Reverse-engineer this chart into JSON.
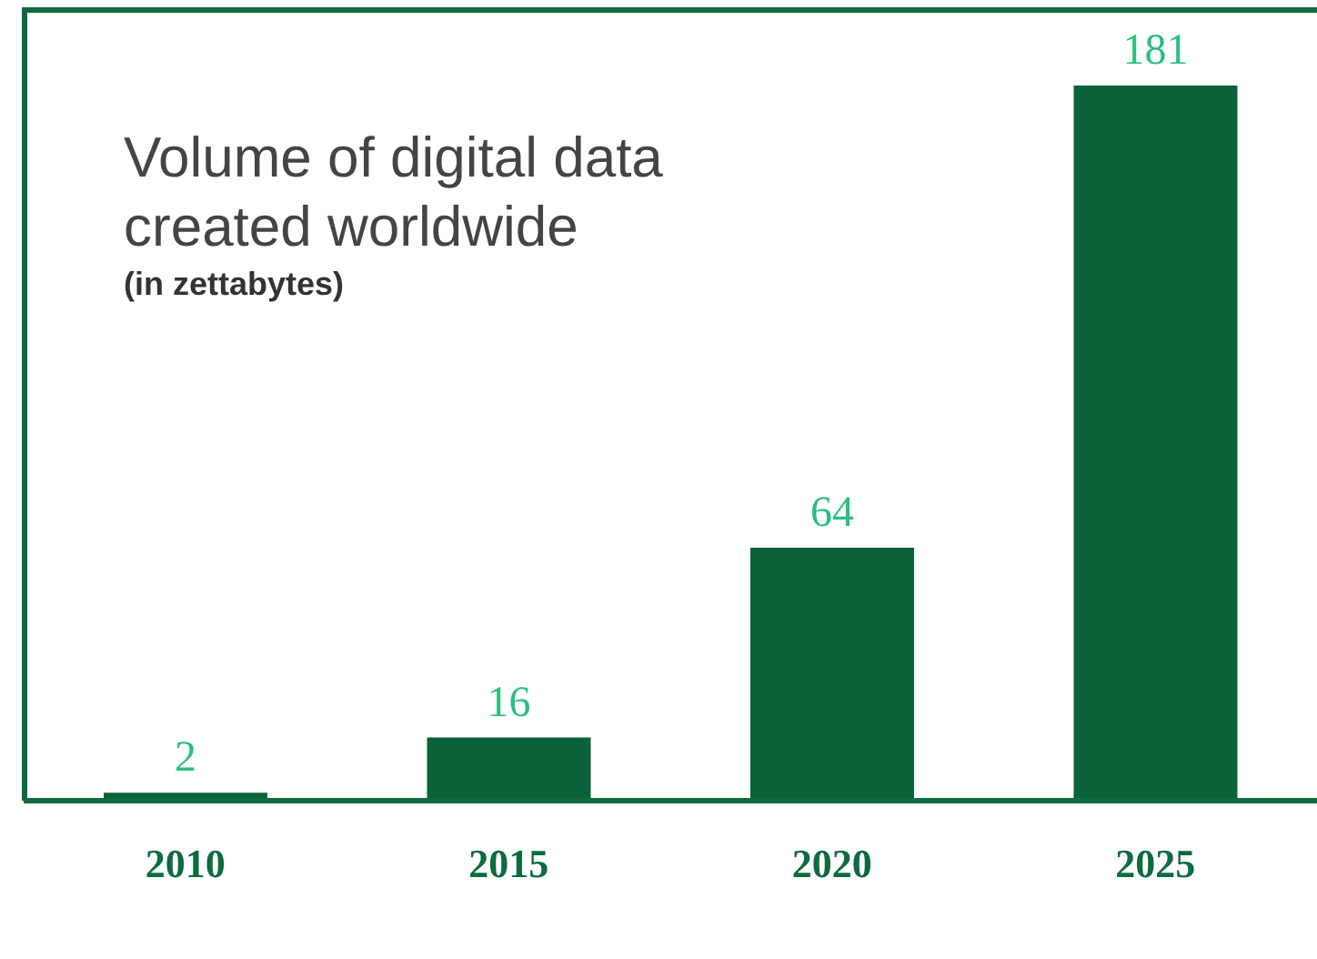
{
  "chart_data": {
    "type": "bar",
    "title": "Volume of digital data created worldwide",
    "subtitle": "(in zettabytes)",
    "categories": [
      "2010",
      "2015",
      "2020",
      "2025"
    ],
    "values": [
      2,
      16,
      64,
      181
    ],
    "color": "#0b6239",
    "data_labels": true
  }
}
